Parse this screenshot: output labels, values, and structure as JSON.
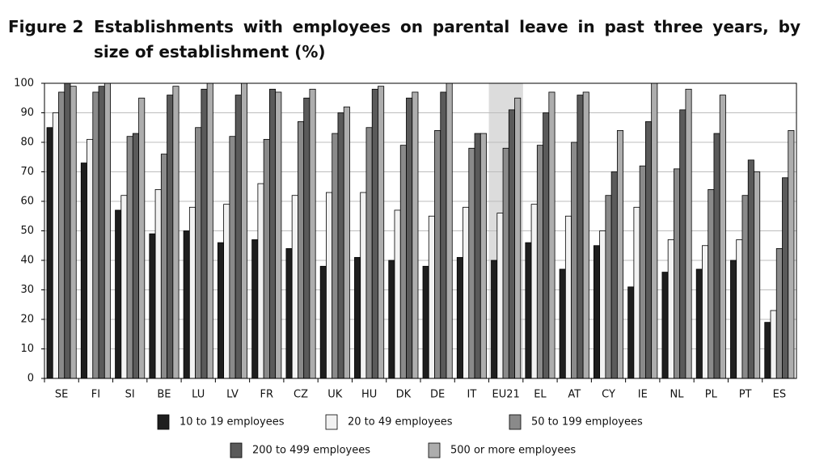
{
  "chart_data": {
    "type": "bar",
    "figure_label": "Figure 2",
    "title": "Establishments with employees on parental leave in past three years, by size of establishment (%)",
    "categories": [
      "SE",
      "FI",
      "SI",
      "BE",
      "LU",
      "LV",
      "FR",
      "CZ",
      "UK",
      "HU",
      "DK",
      "DE",
      "IT",
      "EU21",
      "EL",
      "AT",
      "CY",
      "IE",
      "NL",
      "PL",
      "PT",
      "ES"
    ],
    "highlight": "EU21",
    "series": [
      {
        "name": "10 to 19 employees",
        "color": "#1e1e1e",
        "values": [
          85,
          73,
          57,
          49,
          50,
          46,
          47,
          44,
          38,
          41,
          40,
          38,
          41,
          40,
          46,
          37,
          45,
          31,
          36,
          37,
          40,
          19
        ]
      },
      {
        "name": "20 to 49 employees",
        "color": "#f2f2f2",
        "values": [
          90,
          81,
          62,
          64,
          58,
          59,
          66,
          62,
          63,
          63,
          57,
          55,
          58,
          56,
          59,
          55,
          50,
          58,
          47,
          45,
          47,
          23
        ]
      },
      {
        "name": "50 to 199 employees",
        "color": "#8a8a8a",
        "values": [
          97,
          97,
          82,
          76,
          85,
          82,
          81,
          87,
          83,
          85,
          79,
          84,
          78,
          78,
          79,
          80,
          62,
          72,
          71,
          64,
          62,
          44
        ]
      },
      {
        "name": "200 to 499 employees",
        "color": "#5a5a5a",
        "values": [
          100,
          99,
          83,
          96,
          98,
          96,
          98,
          95,
          90,
          98,
          95,
          97,
          83,
          91,
          90,
          96,
          70,
          87,
          91,
          83,
          74,
          68
        ]
      },
      {
        "name": "500 or more employees",
        "color": "#adadad",
        "values": [
          99,
          100,
          95,
          99,
          100,
          100,
          97,
          98,
          92,
          99,
          97,
          100,
          83,
          95,
          97,
          97,
          84,
          100,
          98,
          96,
          70,
          84
        ]
      }
    ],
    "ylim": [
      0,
      100
    ],
    "yticks": [
      0,
      10,
      20,
      30,
      40,
      50,
      60,
      70,
      80,
      90,
      100
    ],
    "grid": true
  }
}
